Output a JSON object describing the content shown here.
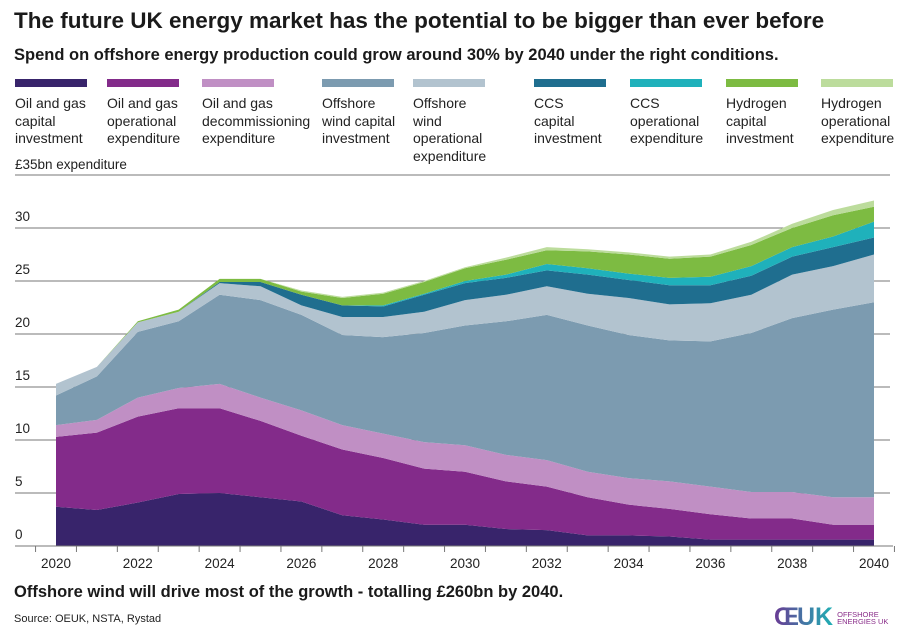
{
  "header": {
    "title": "The future UK energy market has the potential to be bigger than ever before",
    "subtitle": "Spend on offshore energy production could grow around 30% by 2040 under the right conditions."
  },
  "footer": {
    "note": "Offshore wind will drive most of the growth - totalling £260bn by 2040.",
    "source": "Source: OEUK, NSTA, Rystad",
    "logo_mark": "OEUK",
    "logo_text_1": "Offshore",
    "logo_text_2": "Energies UK"
  },
  "chart_data": {
    "type": "area",
    "stacked": true,
    "title": "",
    "ylabel": "£35bn expenditure",
    "xlabel": "",
    "ylim": [
      0,
      35
    ],
    "yticks": [
      "0",
      "5",
      "10",
      "15",
      "20",
      "25",
      "30"
    ],
    "grid": true,
    "legend_placement": "top",
    "x": [
      2020,
      2021,
      2022,
      2023,
      2024,
      2025,
      2026,
      2027,
      2028,
      2029,
      2030,
      2031,
      2032,
      2033,
      2034,
      2035,
      2036,
      2037,
      2038,
      2039,
      2040
    ],
    "xtick_labels": [
      "2020",
      "2022",
      "2024",
      "2026",
      "2028",
      "2030",
      "2032",
      "2034",
      "2036",
      "2038",
      "2040"
    ],
    "series": [
      {
        "name": "Oil and gas capital investment",
        "color": "#38246b",
        "values": [
          3.7,
          3.4,
          4.1,
          4.9,
          5.0,
          4.6,
          4.2,
          2.9,
          2.5,
          2.0,
          2.0,
          1.6,
          1.5,
          1.0,
          1.0,
          0.9,
          0.6,
          0.6,
          0.6,
          0.6,
          0.6
        ]
      },
      {
        "name": "Oil and gas operational expenditure",
        "color": "#832b8a",
        "values": [
          6.6,
          7.3,
          8.1,
          8.1,
          8.0,
          7.2,
          6.2,
          6.2,
          5.8,
          5.3,
          5.0,
          4.5,
          4.1,
          3.6,
          2.9,
          2.6,
          2.4,
          2.0,
          2.0,
          1.4,
          1.4
        ]
      },
      {
        "name": "Oil and gas decommissioning expenditure",
        "color": "#c08fc4",
        "values": [
          1.1,
          1.2,
          1.8,
          1.9,
          2.3,
          2.2,
          2.4,
          2.3,
          2.3,
          2.5,
          2.5,
          2.5,
          2.5,
          2.4,
          2.5,
          2.6,
          2.6,
          2.5,
          2.5,
          2.6,
          2.6
        ]
      },
      {
        "name": "Offshore wind capital investment",
        "color": "#7c9bb0",
        "values": [
          2.8,
          4.1,
          6.2,
          6.3,
          8.4,
          9.2,
          9.0,
          8.5,
          9.1,
          10.3,
          11.3,
          12.6,
          13.7,
          13.8,
          13.5,
          13.3,
          13.7,
          15.0,
          16.4,
          17.7,
          18.4
        ]
      },
      {
        "name": "Offshore wind operational expenditure",
        "color": "#b2c3cf",
        "values": [
          1.1,
          0.9,
          0.9,
          0.9,
          1.1,
          1.3,
          0.9,
          1.7,
          1.9,
          2.0,
          2.4,
          2.5,
          2.7,
          3.0,
          3.5,
          3.4,
          3.6,
          3.6,
          4.1,
          4.1,
          4.5
        ]
      },
      {
        "name": "CCS capital investment",
        "color": "#1f6e8f",
        "values": [
          0,
          0,
          0,
          0,
          0.1,
          0.4,
          1.0,
          1.1,
          1.0,
          1.6,
          1.6,
          1.6,
          1.5,
          1.8,
          1.7,
          1.8,
          1.7,
          1.8,
          1.7,
          1.8,
          1.6
        ]
      },
      {
        "name": "CCS operational expenditure",
        "color": "#1fb1bb",
        "values": [
          0,
          0,
          0,
          0,
          0,
          0,
          0,
          0,
          0.1,
          0.1,
          0.2,
          0.3,
          0.6,
          0.6,
          0.6,
          0.7,
          0.8,
          0.9,
          0.9,
          1.0,
          1.5
        ]
      },
      {
        "name": "Hydrogen capital investment",
        "color": "#7dbb42",
        "values": [
          0,
          0,
          0.1,
          0.2,
          0.3,
          0.3,
          0.3,
          0.7,
          1.1,
          1.1,
          1.2,
          1.4,
          1.3,
          1.6,
          1.8,
          1.8,
          1.9,
          2.0,
          1.8,
          2.0,
          1.4
        ]
      },
      {
        "name": "Hydrogen operational expenditure",
        "color": "#bcdc9c",
        "values": [
          0,
          0,
          0,
          0,
          0,
          0,
          0.1,
          0.1,
          0.1,
          0.1,
          0.1,
          0.2,
          0.3,
          0.2,
          0.2,
          0.2,
          0.2,
          0.3,
          0.4,
          0.5,
          0.6
        ]
      }
    ]
  },
  "legend": [
    {
      "line1": "Oil and gas",
      "line2": "capital",
      "line3": "investment"
    },
    {
      "line1": "Oil and gas",
      "line2": "operational",
      "line3": "expenditure"
    },
    {
      "line1": "Oil and gas",
      "line2": "decommissioning",
      "line3": "expenditure"
    },
    {
      "line1": "Offshore",
      "line2": "wind capital",
      "line3": "investment"
    },
    {
      "line1": "Offshore",
      "line2": "wind operational",
      "line3": "expenditure"
    },
    {
      "line1": "CCS",
      "line2": "capital",
      "line3": "investment"
    },
    {
      "line1": "CCS",
      "line2": "operational",
      "line3": "expenditure"
    },
    {
      "line1": "Hydrogen",
      "line2": "capital",
      "line3": "investment"
    },
    {
      "line1": "Hydrogen",
      "line2": "operational",
      "line3": "expenditure"
    }
  ]
}
